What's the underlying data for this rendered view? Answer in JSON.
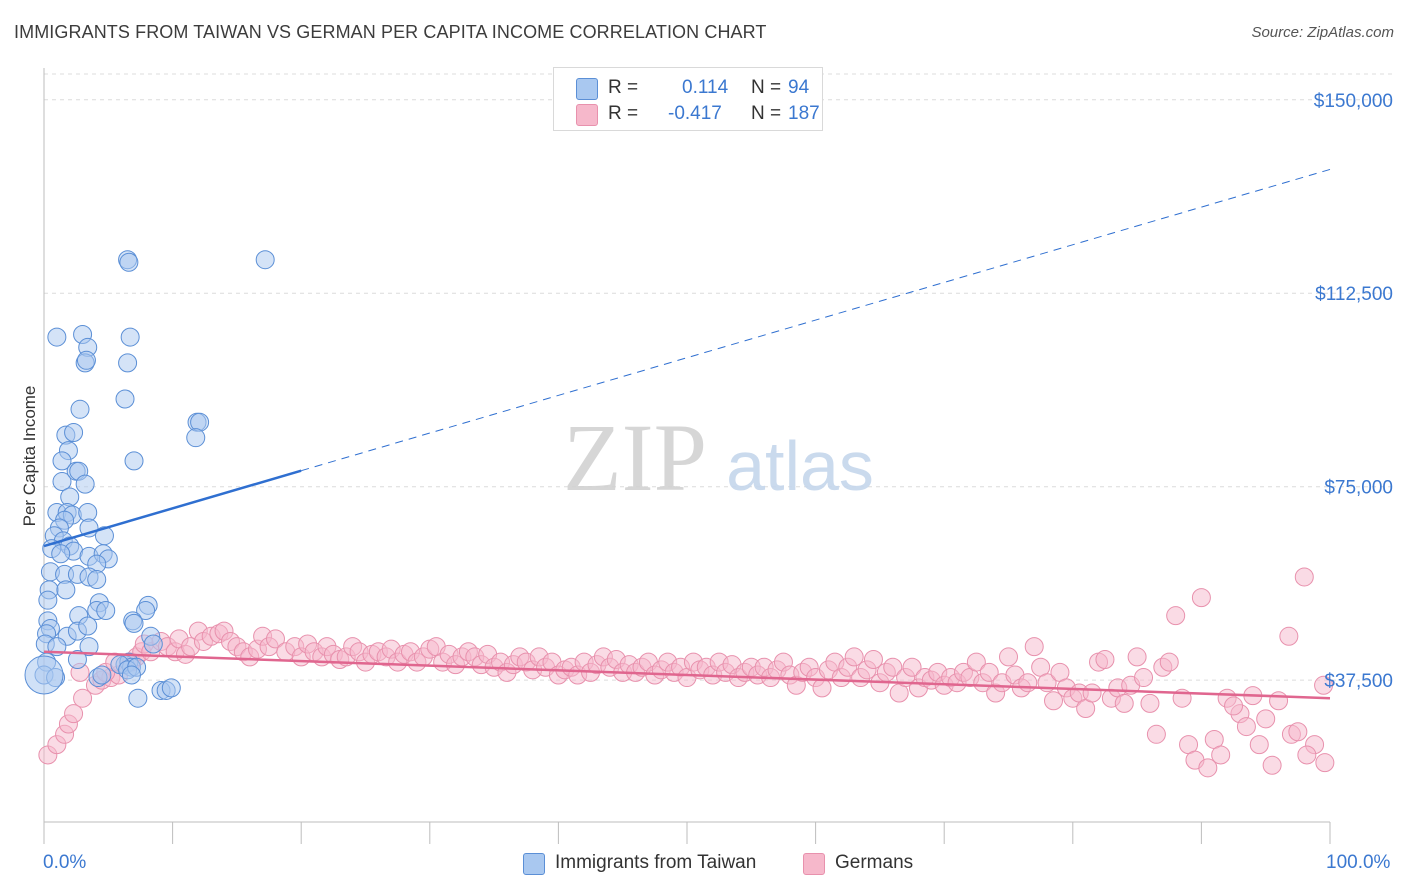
{
  "title": "IMMIGRANTS FROM TAIWAN VS GERMAN PER CAPITA INCOME CORRELATION CHART",
  "source": "Source: ZipAtlas.com",
  "watermark": {
    "zip": "ZIP",
    "atlas": "atlas"
  },
  "colors": {
    "taiwan_fill": "#a9c8f0",
    "taiwan_stroke": "#5b8fd6",
    "taiwan_line": "#2f6fd0",
    "german_fill": "#f6b8cb",
    "german_stroke": "#e891ad",
    "german_line": "#e0668f",
    "axis_text": "#3b78d0",
    "grid": "#dcdcdc"
  },
  "legend": {
    "rows": [
      {
        "r_label": "R =",
        "r_value": "0.114",
        "n_label": "N =",
        "n_value": "94"
      },
      {
        "r_label": "R =",
        "r_value": "-0.417",
        "n_label": "N =",
        "n_value": "187"
      }
    ]
  },
  "bottom_legend": {
    "taiwan": "Immigrants from Taiwan",
    "german": "Germans"
  },
  "chart_data": {
    "type": "scatter",
    "ylabel": "Per Capita Income",
    "xlim": [
      0,
      100
    ],
    "ylim": [
      10000,
      155000
    ],
    "yticks": [
      {
        "value": 37500,
        "label": "$37,500"
      },
      {
        "value": 75000,
        "label": "$75,000"
      },
      {
        "value": 112500,
        "label": "$112,500"
      },
      {
        "value": 150000,
        "label": "$150,000"
      }
    ],
    "xtick_labels": {
      "left": "0.0%",
      "right": "100.0%"
    },
    "grid": "horizontal dashed",
    "series": [
      {
        "name": "Immigrants from Taiwan",
        "trend": {
          "x0": 0,
          "y0": 63500,
          "x1": 100,
          "y1": 136500,
          "solid_until": 20
        },
        "points": [
          [
            6.5,
            119
          ],
          [
            6.6,
            118.5
          ],
          [
            17.2,
            119
          ],
          [
            1.0,
            104
          ],
          [
            3.0,
            104.5
          ],
          [
            3.4,
            102
          ],
          [
            6.7,
            104
          ],
          [
            3.2,
            99
          ],
          [
            3.3,
            99.5
          ],
          [
            6.5,
            99
          ],
          [
            2.8,
            90
          ],
          [
            6.3,
            92
          ],
          [
            1.7,
            85
          ],
          [
            2.3,
            85.5
          ],
          [
            11.9,
            87.5
          ],
          [
            12.1,
            87.5
          ],
          [
            11.8,
            84.5
          ],
          [
            1.9,
            82
          ],
          [
            1.4,
            80
          ],
          [
            7.0,
            80
          ],
          [
            2.5,
            78
          ],
          [
            2.7,
            78
          ],
          [
            1.4,
            76
          ],
          [
            3.2,
            75.5
          ],
          [
            2.0,
            73
          ],
          [
            1.0,
            70
          ],
          [
            1.8,
            70
          ],
          [
            2.2,
            69.5
          ],
          [
            1.6,
            68.5
          ],
          [
            3.4,
            70
          ],
          [
            3.5,
            67
          ],
          [
            1.2,
            67
          ],
          [
            0.8,
            65.5
          ],
          [
            1.5,
            64.5
          ],
          [
            2.0,
            63.5
          ],
          [
            2.3,
            62.5
          ],
          [
            0.6,
            63
          ],
          [
            1.3,
            62
          ],
          [
            3.5,
            61.5
          ],
          [
            4.7,
            65.5
          ],
          [
            4.6,
            62
          ],
          [
            5.0,
            61
          ],
          [
            4.1,
            60
          ],
          [
            0.5,
            58.5
          ],
          [
            1.6,
            58
          ],
          [
            2.6,
            58
          ],
          [
            3.5,
            57.5
          ],
          [
            4.1,
            57
          ],
          [
            0.4,
            55
          ],
          [
            1.7,
            55
          ],
          [
            0.3,
            53
          ],
          [
            4.3,
            52.5
          ],
          [
            4.1,
            51
          ],
          [
            4.8,
            51
          ],
          [
            2.7,
            50
          ],
          [
            8.1,
            52
          ],
          [
            7.9,
            51
          ],
          [
            0.3,
            49
          ],
          [
            0.5,
            47.5
          ],
          [
            0.2,
            46.5
          ],
          [
            1.8,
            46
          ],
          [
            2.6,
            47
          ],
          [
            3.4,
            48
          ],
          [
            0.1,
            44.5
          ],
          [
            1.0,
            44
          ],
          [
            3.5,
            44
          ],
          [
            8.3,
            46
          ],
          [
            6.9,
            49
          ],
          [
            7.0,
            48.5
          ],
          [
            8.5,
            44.5
          ],
          [
            0.2,
            41
          ],
          [
            2.6,
            41.5
          ],
          [
            6.3,
            40.5
          ],
          [
            6.6,
            41
          ],
          [
            6.8,
            40
          ],
          [
            5.9,
            40.5
          ],
          [
            6.5,
            39.5
          ],
          [
            7.2,
            40
          ],
          [
            0.0,
            38.5
          ],
          [
            0.9,
            38
          ],
          [
            4.2,
            38
          ],
          [
            4.5,
            38.5
          ],
          [
            6.8,
            38.5
          ],
          [
            9.1,
            35.5
          ],
          [
            9.5,
            35.5
          ],
          [
            9.9,
            36
          ],
          [
            7.3,
            34
          ]
        ]
      },
      {
        "name": "Germans",
        "trend": {
          "x0": 0,
          "y0": 43000,
          "x1": 100,
          "y1": 34000
        },
        "points": [
          [
            0.3,
            23
          ],
          [
            1.0,
            25
          ],
          [
            1.6,
            27
          ],
          [
            1.9,
            29
          ],
          [
            2.3,
            31
          ],
          [
            3.0,
            34
          ],
          [
            4.0,
            36.5
          ],
          [
            4.5,
            37.5
          ],
          [
            5.2,
            38
          ],
          [
            5.8,
            38.5
          ],
          [
            2.8,
            39
          ],
          [
            4.8,
            39
          ],
          [
            5.5,
            41
          ],
          [
            6.8,
            41
          ],
          [
            7.2,
            42
          ],
          [
            7.6,
            43
          ],
          [
            7.8,
            44.5
          ],
          [
            8.3,
            43
          ],
          [
            9.1,
            45
          ],
          [
            9.6,
            44
          ],
          [
            10.2,
            43
          ],
          [
            10.5,
            45.5
          ],
          [
            11.0,
            42.5
          ],
          [
            11.4,
            44
          ],
          [
            12.0,
            47
          ],
          [
            12.4,
            45
          ],
          [
            13.0,
            46
          ],
          [
            13.6,
            46.5
          ],
          [
            14.0,
            47
          ],
          [
            14.5,
            45
          ],
          [
            15.0,
            44
          ],
          [
            15.5,
            43
          ],
          [
            16.0,
            42
          ],
          [
            16.6,
            43.5
          ],
          [
            17.0,
            46
          ],
          [
            17.5,
            44
          ],
          [
            18.0,
            45.5
          ],
          [
            18.8,
            43
          ],
          [
            19.5,
            44
          ],
          [
            20.0,
            42
          ],
          [
            20.5,
            44.5
          ],
          [
            21.0,
            43
          ],
          [
            21.6,
            42
          ],
          [
            22.0,
            44
          ],
          [
            22.5,
            42.5
          ],
          [
            23.0,
            41.5
          ],
          [
            23.5,
            42
          ],
          [
            24.0,
            44
          ],
          [
            24.5,
            43
          ],
          [
            25.0,
            41
          ],
          [
            25.5,
            42.5
          ],
          [
            26.0,
            43
          ],
          [
            26.6,
            42
          ],
          [
            27.0,
            43.5
          ],
          [
            27.5,
            41
          ],
          [
            28.0,
            42.5
          ],
          [
            28.5,
            43
          ],
          [
            29.0,
            41
          ],
          [
            29.5,
            42
          ],
          [
            30.0,
            43.5
          ],
          [
            30.5,
            44
          ],
          [
            31.0,
            41
          ],
          [
            31.5,
            42.5
          ],
          [
            32.0,
            40.5
          ],
          [
            32.5,
            42
          ],
          [
            33.0,
            43
          ],
          [
            33.5,
            42
          ],
          [
            34.0,
            40.5
          ],
          [
            34.5,
            42.5
          ],
          [
            35.0,
            40
          ],
          [
            35.5,
            41
          ],
          [
            36.0,
            39
          ],
          [
            36.5,
            40.5
          ],
          [
            37.0,
            42
          ],
          [
            37.5,
            41
          ],
          [
            38.0,
            39.5
          ],
          [
            38.5,
            42
          ],
          [
            39.0,
            40
          ],
          [
            39.5,
            41
          ],
          [
            40.0,
            38.5
          ],
          [
            40.5,
            39.5
          ],
          [
            41.0,
            40
          ],
          [
            41.5,
            38.5
          ],
          [
            42.0,
            41
          ],
          [
            42.5,
            39
          ],
          [
            43.0,
            40.5
          ],
          [
            43.5,
            42
          ],
          [
            44.0,
            40
          ],
          [
            44.5,
            41.5
          ],
          [
            45.0,
            39
          ],
          [
            45.5,
            40.5
          ],
          [
            46.0,
            39
          ],
          [
            46.5,
            40
          ],
          [
            47.0,
            41
          ],
          [
            47.5,
            38.5
          ],
          [
            48.0,
            39.5
          ],
          [
            48.5,
            41
          ],
          [
            49.0,
            39
          ],
          [
            49.5,
            40
          ],
          [
            50.0,
            38
          ],
          [
            50.5,
            41
          ],
          [
            51.0,
            39.5
          ],
          [
            51.5,
            40
          ],
          [
            52.0,
            38.5
          ],
          [
            52.5,
            41
          ],
          [
            53.0,
            39
          ],
          [
            53.5,
            40.5
          ],
          [
            54.0,
            38
          ],
          [
            54.5,
            39
          ],
          [
            55.0,
            40
          ],
          [
            55.5,
            38.5
          ],
          [
            56.0,
            40
          ],
          [
            56.5,
            38
          ],
          [
            57.0,
            39.5
          ],
          [
            57.5,
            41
          ],
          [
            58.0,
            38.5
          ],
          [
            58.5,
            36.5
          ],
          [
            59.0,
            39
          ],
          [
            59.5,
            40
          ],
          [
            60.0,
            38
          ],
          [
            60.5,
            36
          ],
          [
            61.0,
            39.5
          ],
          [
            61.5,
            41
          ],
          [
            62.0,
            38
          ],
          [
            62.5,
            40
          ],
          [
            63.0,
            42
          ],
          [
            63.5,
            38
          ],
          [
            64.0,
            39.5
          ],
          [
            64.5,
            41.5
          ],
          [
            65.0,
            37
          ],
          [
            65.5,
            39
          ],
          [
            66.0,
            40
          ],
          [
            66.5,
            35
          ],
          [
            67.0,
            38
          ],
          [
            67.5,
            40
          ],
          [
            68.0,
            36
          ],
          [
            68.5,
            38
          ],
          [
            69.0,
            37.5
          ],
          [
            69.5,
            39
          ],
          [
            70.0,
            36.5
          ],
          [
            70.5,
            38
          ],
          [
            71.0,
            37
          ],
          [
            71.5,
            39
          ],
          [
            72.0,
            38
          ],
          [
            72.5,
            41
          ],
          [
            73.0,
            37
          ],
          [
            73.5,
            39
          ],
          [
            74.0,
            35
          ],
          [
            74.5,
            37
          ],
          [
            75.0,
            42
          ],
          [
            75.5,
            38.5
          ],
          [
            76.0,
            36
          ],
          [
            76.5,
            37
          ],
          [
            77.0,
            44
          ],
          [
            77.5,
            40
          ],
          [
            78.0,
            37
          ],
          [
            78.5,
            33.5
          ],
          [
            79.0,
            39
          ],
          [
            79.5,
            36
          ],
          [
            80.0,
            34
          ],
          [
            80.5,
            35
          ],
          [
            81.0,
            32
          ],
          [
            81.5,
            35
          ],
          [
            82.0,
            41
          ],
          [
            82.5,
            41.5
          ],
          [
            83.0,
            34
          ],
          [
            83.5,
            36
          ],
          [
            84.0,
            33
          ],
          [
            84.5,
            36.5
          ],
          [
            85.0,
            42
          ],
          [
            85.5,
            38
          ],
          [
            86.0,
            33
          ],
          [
            86.5,
            27
          ],
          [
            87.0,
            40
          ],
          [
            87.5,
            41
          ],
          [
            88.0,
            50
          ],
          [
            88.5,
            34
          ],
          [
            89.0,
            25
          ],
          [
            89.5,
            22
          ],
          [
            90.0,
            53.5
          ],
          [
            91.0,
            26
          ],
          [
            91.5,
            23
          ],
          [
            92.0,
            34
          ],
          [
            93.0,
            31
          ],
          [
            94.0,
            34.5
          ],
          [
            94.5,
            25
          ],
          [
            95.0,
            30
          ],
          [
            96.0,
            33.5
          ],
          [
            97.0,
            27
          ],
          [
            97.5,
            27.5
          ],
          [
            98.0,
            57.5
          ],
          [
            96.8,
            46
          ],
          [
            99.5,
            36.5
          ],
          [
            98.8,
            25
          ],
          [
            99.6,
            21.5
          ],
          [
            92.5,
            32.5
          ],
          [
            93.5,
            28.5
          ],
          [
            90.5,
            20.5
          ],
          [
            95.5,
            21
          ],
          [
            98.2,
            23
          ]
        ]
      }
    ]
  }
}
